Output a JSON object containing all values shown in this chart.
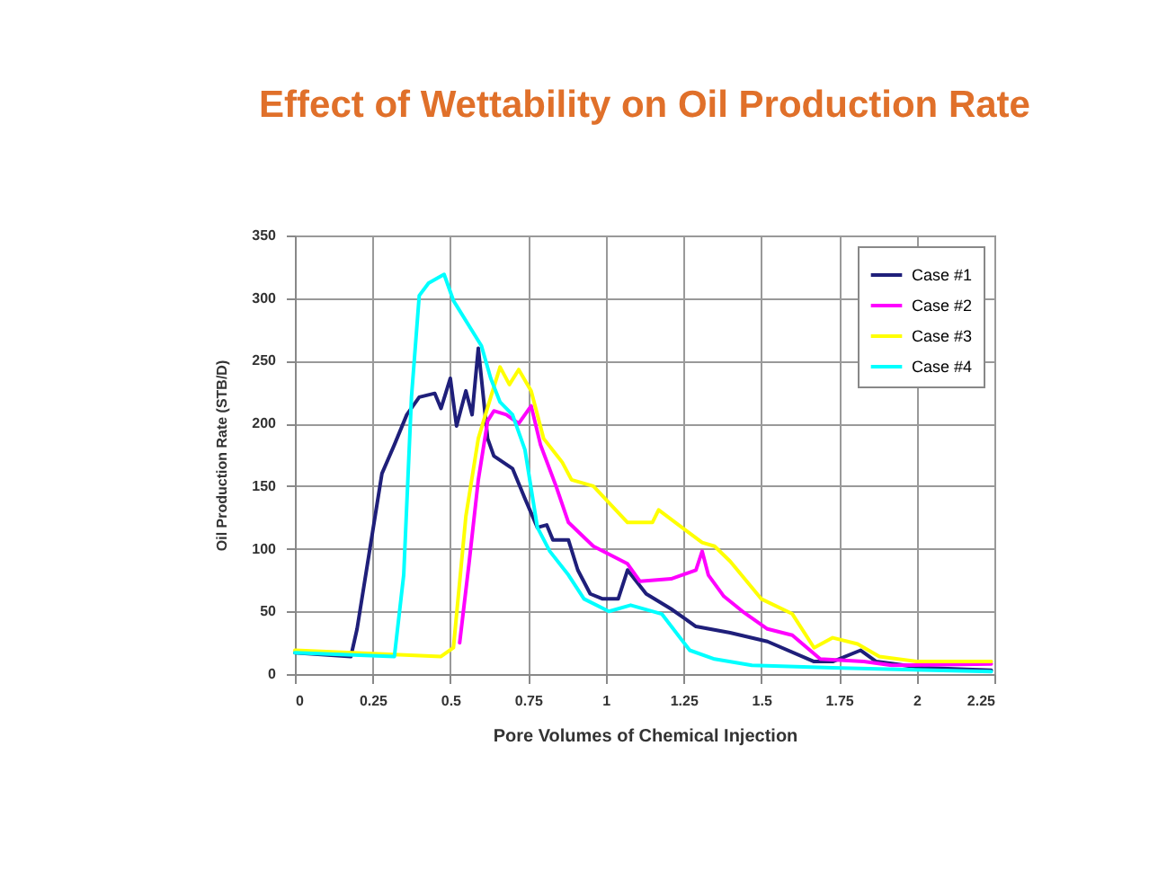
{
  "chart_data": {
    "type": "line",
    "title": "Effect of Wettability on Oil Production Rate",
    "xlabel": "Pore Volumes of Chemical Injection",
    "ylabel": "Oil Production Rate (STB/D)",
    "xlim": [
      0,
      2.25
    ],
    "xticks": [
      0,
      0.25,
      0.5,
      0.75,
      1,
      1.25,
      1.5,
      1.75,
      2,
      2.25
    ],
    "ylim": [
      0,
      350
    ],
    "yticks": [
      0,
      50,
      100,
      150,
      200,
      250,
      300,
      350
    ],
    "grid": true,
    "legend": "top right",
    "marker": "none",
    "line_style": "solid",
    "series": [
      {
        "name": "Case #1",
        "color": "#1f1f7a",
        "x": [
          0,
          0.18,
          0.2,
          0.24,
          0.28,
          0.32,
          0.36,
          0.4,
          0.45,
          0.47,
          0.5,
          0.52,
          0.55,
          0.57,
          0.59,
          0.62,
          0.64,
          0.7,
          0.74,
          0.78,
          0.81,
          0.83,
          0.88,
          0.91,
          0.95,
          0.99,
          1.04,
          1.07,
          1.13,
          1.21,
          1.29,
          1.4,
          1.52,
          1.67,
          1.73,
          1.82,
          1.87,
          2.02,
          2.24
        ],
        "values": [
          17,
          14,
          36,
          98,
          160,
          183,
          207,
          221,
          224,
          212,
          236,
          198,
          226,
          207,
          260,
          188,
          174,
          164,
          140,
          117,
          119,
          107,
          107,
          83,
          64,
          60,
          60,
          83,
          64,
          52,
          38,
          33,
          26,
          10,
          10,
          19,
          10,
          5,
          3
        ]
      },
      {
        "name": "Case #2",
        "color": "#ff00ff",
        "x": [
          0.53,
          0.56,
          0.59,
          0.62,
          0.64,
          0.68,
          0.72,
          0.76,
          0.79,
          0.84,
          0.88,
          0.96,
          1.07,
          1.11,
          1.21,
          1.29,
          1.31,
          1.33,
          1.38,
          1.44,
          1.52,
          1.6,
          1.69,
          1.83,
          1.92,
          2.24
        ],
        "values": [
          25,
          88,
          155,
          202,
          210,
          207,
          200,
          214,
          183,
          150,
          121,
          102,
          88,
          74,
          76,
          83,
          98,
          79,
          62,
          50,
          36,
          31,
          12,
          10,
          7,
          8
        ]
      },
      {
        "name": "Case #3",
        "color": "#ffff00",
        "x": [
          0,
          0.47,
          0.51,
          0.55,
          0.59,
          0.63,
          0.66,
          0.69,
          0.72,
          0.76,
          0.8,
          0.86,
          0.89,
          0.96,
          1.07,
          1.15,
          1.17,
          1.31,
          1.35,
          1.4,
          1.5,
          1.6,
          1.67,
          1.73,
          1.81,
          1.88,
          2.0,
          2.24
        ],
        "values": [
          19,
          14,
          21,
          126,
          188,
          221,
          245,
          231,
          243,
          226,
          188,
          169,
          155,
          150,
          121,
          121,
          131,
          105,
          102,
          90,
          60,
          48,
          21,
          29,
          24,
          14,
          10,
          10
        ]
      },
      {
        "name": "Case #4",
        "color": "#00ffff",
        "x": [
          0,
          0.32,
          0.35,
          0.375,
          0.4,
          0.43,
          0.48,
          0.51,
          0.57,
          0.6,
          0.63,
          0.66,
          0.7,
          0.74,
          0.78,
          0.82,
          0.88,
          0.93,
          1.01,
          1.08,
          1.18,
          1.27,
          1.35,
          1.47,
          1.73,
          2.24
        ],
        "values": [
          17,
          14,
          79,
          221,
          302,
          312,
          319,
          298,
          274,
          262,
          236,
          217,
          207,
          179,
          117,
          98,
          79,
          60,
          50,
          55,
          48,
          19,
          12,
          7,
          5,
          2
        ]
      }
    ]
  }
}
